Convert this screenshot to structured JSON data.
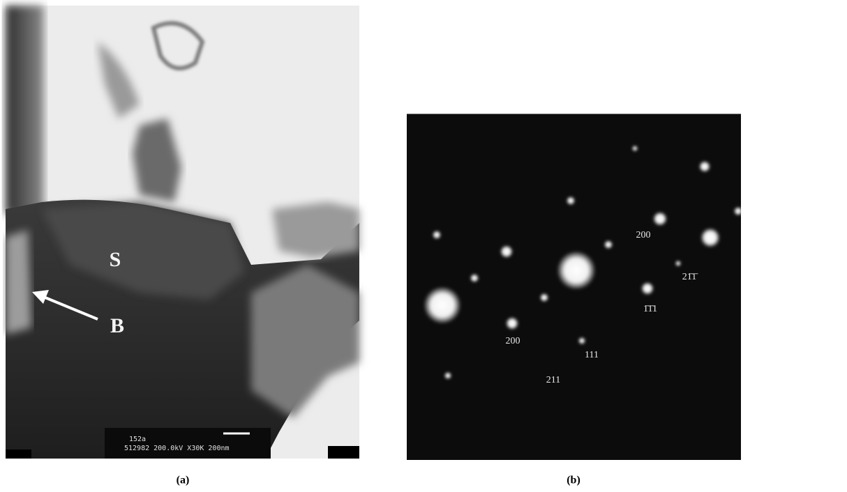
{
  "panels": [
    {
      "caption": "(a)",
      "labels": [
        "S",
        "B"
      ],
      "info": [
        "152a",
        "512982  200.0kV  X30K  200nm"
      ]
    },
    {
      "caption": "(b)",
      "labels": [
        "200",
        "21̄1̄",
        "1̄1̄1",
        "200",
        "111",
        "211"
      ]
    }
  ]
}
